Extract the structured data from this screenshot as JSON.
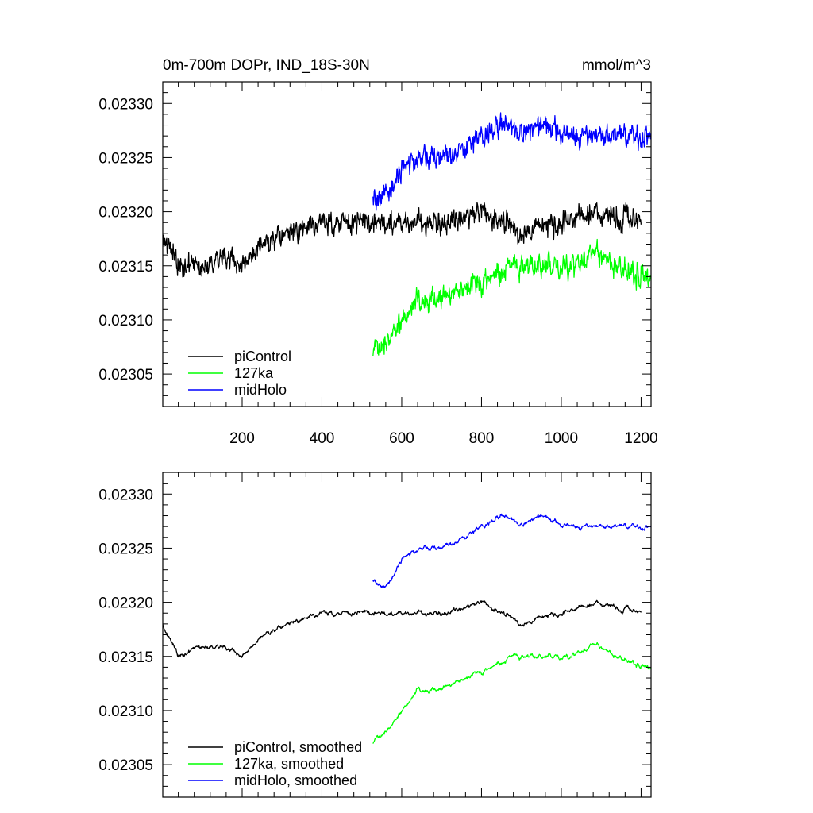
{
  "chart_data": [
    {
      "type": "line",
      "title": "0m-700m DOPr, IND_18S-30N",
      "units": "mmol/m^3",
      "xlabel": "",
      "ylabel": "",
      "xlim": [
        1,
        1225
      ],
      "ylim": [
        0.02302,
        0.02332
      ],
      "xticks": [
        200,
        400,
        600,
        800,
        1000,
        1200
      ],
      "xtick_labels": [
        "200",
        "400",
        "600",
        "800",
        "1000",
        "1200"
      ],
      "yticks": [
        0.02305,
        0.0231,
        0.02315,
        0.0232,
        0.02325,
        0.0233
      ],
      "ytick_labels": [
        "0.02305",
        "0.02310",
        "0.02315",
        "0.02320",
        "0.02325",
        "0.02330"
      ],
      "legend_position": "bottom-left",
      "series": [
        {
          "name": "piControl",
          "color": "#000000",
          "x_range": [
            1,
            1200
          ],
          "anchors": [
            [
              1,
              0.02318
            ],
            [
              40,
              0.02315
            ],
            [
              100,
              0.02315
            ],
            [
              150,
              0.02316
            ],
            [
              200,
              0.02315
            ],
            [
              260,
              0.02317
            ],
            [
              320,
              0.02318
            ],
            [
              400,
              0.02319
            ],
            [
              470,
              0.02319
            ],
            [
              530,
              0.02319
            ],
            [
              600,
              0.02319
            ],
            [
              700,
              0.02319
            ],
            [
              800,
              0.0232
            ],
            [
              900,
              0.02318
            ],
            [
              1000,
              0.02319
            ],
            [
              1100,
              0.0232
            ],
            [
              1200,
              0.02319
            ]
          ],
          "noise": 1.4e-05
        },
        {
          "name": "127ka",
          "color": "#00ff00",
          "x_range": [
            528,
            1225
          ],
          "anchors": [
            [
              528,
              0.02307
            ],
            [
              580,
              0.02309
            ],
            [
              640,
              0.02312
            ],
            [
              700,
              0.02312
            ],
            [
              760,
              0.02313
            ],
            [
              820,
              0.02314
            ],
            [
              880,
              0.02315
            ],
            [
              950,
              0.02315
            ],
            [
              1020,
              0.02315
            ],
            [
              1080,
              0.02316
            ],
            [
              1140,
              0.02315
            ],
            [
              1225,
              0.02314
            ]
          ],
          "noise": 1.4e-05
        },
        {
          "name": "midHolo",
          "color": "#0000ff",
          "x_range": [
            528,
            1225
          ],
          "anchors": [
            [
              528,
              0.02321
            ],
            [
              560,
              0.02321
            ],
            [
              600,
              0.02324
            ],
            [
              650,
              0.02325
            ],
            [
              700,
              0.02325
            ],
            [
              750,
              0.02326
            ],
            [
              800,
              0.02327
            ],
            [
              850,
              0.02328
            ],
            [
              900,
              0.02327
            ],
            [
              950,
              0.02328
            ],
            [
              1000,
              0.02327
            ],
            [
              1100,
              0.02327
            ],
            [
              1225,
              0.02327
            ]
          ],
          "noise": 1.4e-05
        }
      ]
    },
    {
      "type": "line",
      "title": "",
      "xlabel": "",
      "ylabel": "",
      "xlim": [
        1,
        1225
      ],
      "ylim": [
        0.02302,
        0.02332
      ],
      "xticks": [
        200,
        400,
        600,
        800,
        1000,
        1200
      ],
      "yticks": [
        0.02305,
        0.0231,
        0.02315,
        0.0232,
        0.02325,
        0.0233
      ],
      "ytick_labels": [
        "0.02305",
        "0.02310",
        "0.02315",
        "0.02320",
        "0.02325",
        "0.02330"
      ],
      "legend_position": "bottom-left",
      "series": [
        {
          "name": "piControl, smoothed",
          "color": "#000000",
          "x_range": [
            1,
            1200
          ],
          "anchors": [
            [
              1,
              0.02318
            ],
            [
              40,
              0.02315
            ],
            [
              100,
              0.02316
            ],
            [
              150,
              0.02316
            ],
            [
              200,
              0.02315
            ],
            [
              260,
              0.02317
            ],
            [
              320,
              0.02318
            ],
            [
              400,
              0.02319
            ],
            [
              470,
              0.02319
            ],
            [
              530,
              0.02319
            ],
            [
              600,
              0.02319
            ],
            [
              700,
              0.02319
            ],
            [
              800,
              0.0232
            ],
            [
              900,
              0.02318
            ],
            [
              1000,
              0.02319
            ],
            [
              1100,
              0.0232
            ],
            [
              1200,
              0.02319
            ]
          ],
          "noise": 6e-06
        },
        {
          "name": "127ka, smoothed",
          "color": "#00ff00",
          "x_range": [
            528,
            1225
          ],
          "anchors": [
            [
              528,
              0.02307
            ],
            [
              580,
              0.02309
            ],
            [
              640,
              0.02312
            ],
            [
              700,
              0.02312
            ],
            [
              760,
              0.02313
            ],
            [
              820,
              0.02314
            ],
            [
              880,
              0.02315
            ],
            [
              950,
              0.02315
            ],
            [
              1020,
              0.02315
            ],
            [
              1080,
              0.02316
            ],
            [
              1140,
              0.02315
            ],
            [
              1225,
              0.02314
            ]
          ],
          "noise": 6e-06
        },
        {
          "name": "midHolo, smoothed",
          "color": "#0000ff",
          "x_range": [
            528,
            1225
          ],
          "anchors": [
            [
              528,
              0.02322
            ],
            [
              560,
              0.02321
            ],
            [
              600,
              0.02324
            ],
            [
              650,
              0.02325
            ],
            [
              700,
              0.02325
            ],
            [
              750,
              0.02326
            ],
            [
              800,
              0.02327
            ],
            [
              850,
              0.02328
            ],
            [
              900,
              0.02327
            ],
            [
              950,
              0.02328
            ],
            [
              1000,
              0.02327
            ],
            [
              1100,
              0.02327
            ],
            [
              1225,
              0.02327
            ]
          ],
          "noise": 6e-06
        }
      ]
    }
  ]
}
